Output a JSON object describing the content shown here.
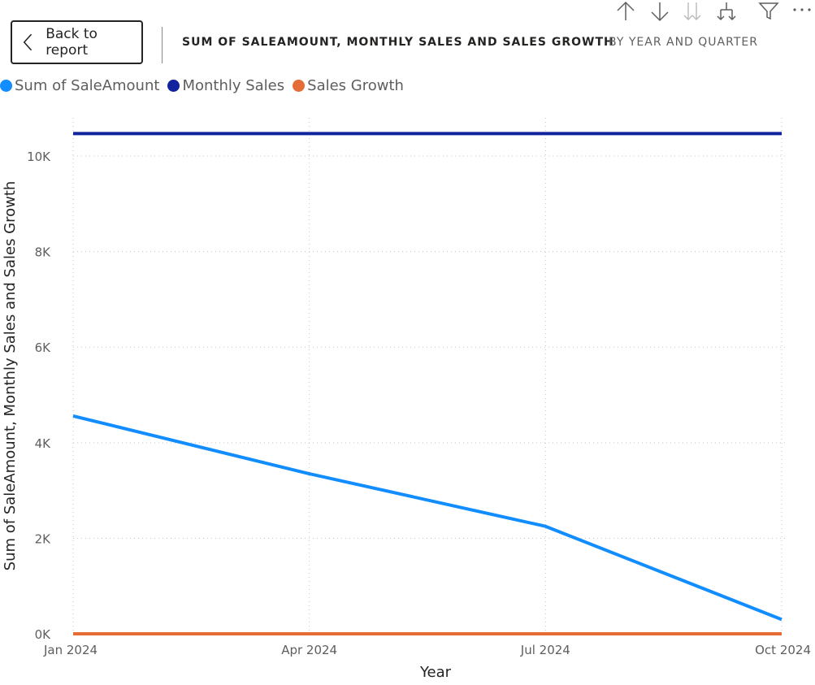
{
  "header": {
    "back_label": "Back to report",
    "title": "SUM OF SALEAMOUNT, MONTHLY SALES AND SALES GROWTH",
    "subtitle": "BY YEAR AND QUARTER"
  },
  "toolbar": {
    "icons": [
      "drill-up-icon",
      "drill-down-icon",
      "expand-next-level-icon",
      "expand-hierarchy-icon",
      "filter-icon",
      "more-options-icon"
    ]
  },
  "colors": {
    "sum_of_saleamount": "#118DFF",
    "monthly_sales": "#12239E",
    "sales_growth": "#E66C37",
    "text": "#252423",
    "muted_text": "#605e5c",
    "grid": "#c8c6c4"
  },
  "chart_data": {
    "type": "line",
    "x": [
      "Jan 2024",
      "Apr 2024",
      "Jul 2024",
      "Oct 2024"
    ],
    "series": [
      {
        "name": "Sum of SaleAmount",
        "color": "#118DFF",
        "values": [
          4560,
          3350,
          2250,
          300
        ]
      },
      {
        "name": "Monthly Sales",
        "color": "#12239E",
        "values": [
          10470,
          10470,
          10470,
          10470
        ]
      },
      {
        "name": "Sales Growth",
        "color": "#E66C37",
        "values": [
          0,
          0,
          0,
          0
        ]
      }
    ],
    "xlabel": "Year",
    "ylabel": "Sum of SaleAmount, Monthly Sales and Sales Growth",
    "ylim": [
      0,
      10800
    ],
    "yticks": [
      0,
      2000,
      4000,
      6000,
      8000,
      10000
    ],
    "ytick_labels": [
      "0K",
      "2K",
      "4K",
      "6K",
      "8K",
      "10K"
    ],
    "grid": true,
    "legend_position": "top-left"
  }
}
